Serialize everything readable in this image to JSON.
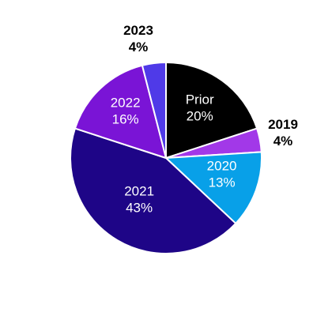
{
  "chart_data": {
    "type": "pie",
    "title": "",
    "start_angle_deg": 0,
    "direction": "clockwise",
    "slices": [
      {
        "label": "Prior",
        "value": 20,
        "value_label": "20%",
        "color": "#000000",
        "label_position": "inside"
      },
      {
        "label": "2019",
        "value": 4,
        "value_label": "4%",
        "color": "#a238e8",
        "label_position": "outside"
      },
      {
        "label": "2020",
        "value": 13,
        "value_label": "13%",
        "color": "#08a0e8",
        "label_position": "inside"
      },
      {
        "label": "2021",
        "value": 43,
        "value_label": "43%",
        "color": "#1e0587",
        "label_position": "inside"
      },
      {
        "label": "2022",
        "value": 16,
        "value_label": "16%",
        "color": "#7a14d6",
        "label_position": "inside"
      },
      {
        "label": "2023",
        "value": 4,
        "value_label": "4%",
        "color": "#4f3ae8",
        "label_position": "outside"
      }
    ],
    "legend": "none"
  }
}
